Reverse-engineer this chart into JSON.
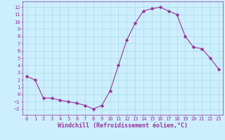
{
  "x": [
    0,
    1,
    2,
    3,
    4,
    5,
    6,
    7,
    8,
    9,
    10,
    11,
    12,
    13,
    14,
    15,
    16,
    17,
    18,
    19,
    20,
    21,
    22,
    23
  ],
  "y": [
    2.5,
    2.0,
    -0.5,
    -0.5,
    -0.8,
    -1.0,
    -1.2,
    -1.5,
    -2.0,
    -1.5,
    0.5,
    4.0,
    7.5,
    9.8,
    11.5,
    11.8,
    12.0,
    11.5,
    11.0,
    8.0,
    6.5,
    6.3,
    5.0,
    3.5
  ],
  "line_color": "#993399",
  "marker": "D",
  "marker_size": 1.8,
  "linewidth": 0.8,
  "background_color": "#cceeff",
  "grid_color": "#aadddd",
  "xlabel": "Windchill (Refroidissement éolien,°C)",
  "xlabel_fontsize": 6,
  "tick_fontsize": 5,
  "ylim": [
    -2.8,
    12.8
  ],
  "xlim": [
    -0.5,
    23.5
  ],
  "yticks": [
    -2,
    -1,
    0,
    1,
    2,
    3,
    4,
    5,
    6,
    7,
    8,
    9,
    10,
    11,
    12
  ],
  "xticks": [
    0,
    1,
    2,
    3,
    4,
    5,
    6,
    7,
    8,
    9,
    10,
    11,
    12,
    13,
    14,
    15,
    16,
    17,
    18,
    19,
    20,
    21,
    22,
    23
  ],
  "spine_color": "#993399",
  "axis_label_color": "#993399",
  "tick_color": "#993399"
}
